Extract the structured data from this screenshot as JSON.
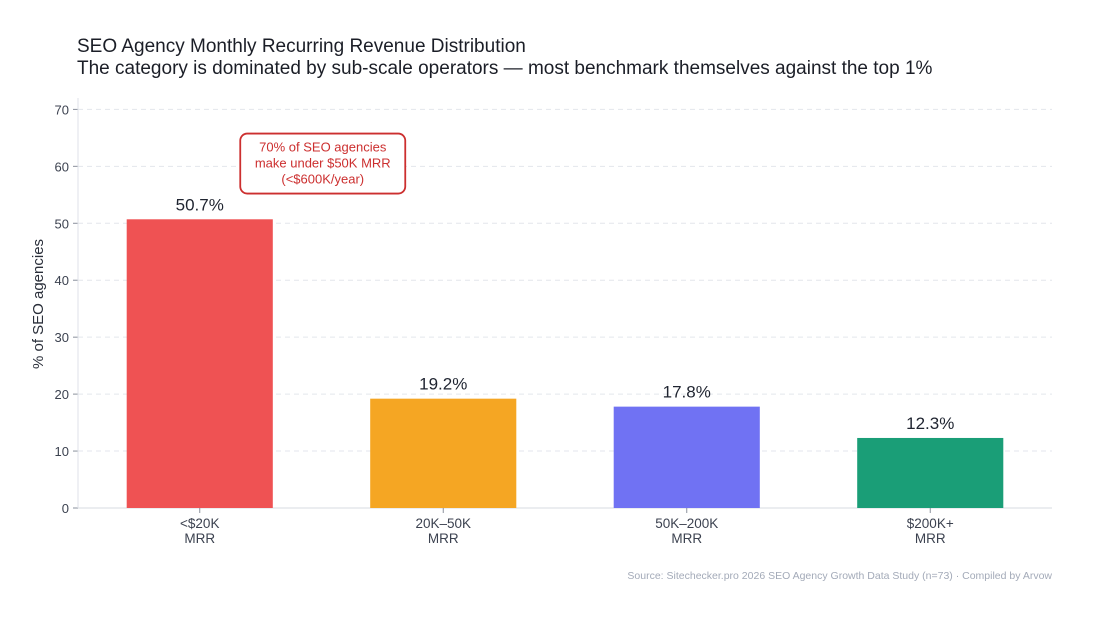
{
  "chart_data": {
    "type": "bar",
    "title": "SEO Agency Monthly Recurring Revenue Distribution",
    "subtitle": "The category is dominated by sub-scale operators — most benchmark themselves against the top 1%",
    "xlabel": "",
    "ylabel": "% of SEO agencies",
    "ylim": [
      0,
      72
    ],
    "yticks": [
      0,
      10,
      20,
      30,
      40,
      50,
      60,
      70
    ],
    "grid": "horizontal-dashed",
    "categories": [
      [
        "<$20K",
        "MRR"
      ],
      [
        "20K–50K",
        "MRR"
      ],
      [
        "50K–200K",
        "MRR"
      ],
      [
        "$200K+",
        "MRR"
      ]
    ],
    "values": [
      50.7,
      19.2,
      17.8,
      12.3
    ],
    "value_labels": [
      "50.7%",
      "19.2%",
      "17.8%",
      "12.3%"
    ],
    "colors": [
      "#ef5253",
      "#f5a623",
      "#7072f3",
      "#1a9e77"
    ],
    "annotation": {
      "lines": [
        "70% of SEO agencies",
        "make under $50K MRR",
        "(<$600K/year)"
      ],
      "color": "#cc2f2f",
      "anchor_y": 64
    },
    "source": "Source: Sitechecker.pro 2026 SEO Agency Growth Data Study (n=73) · Compiled by Arvow"
  }
}
